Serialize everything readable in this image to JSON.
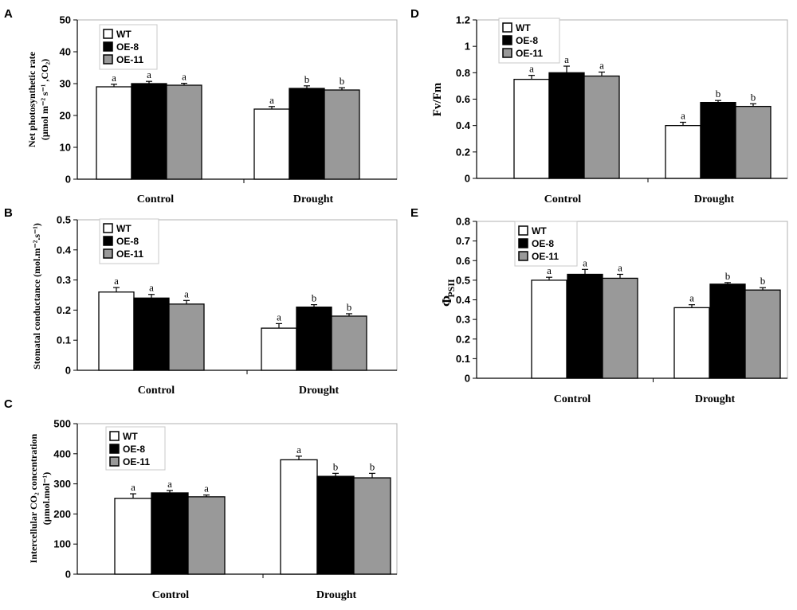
{
  "chart_data": [
    {
      "panel": "A",
      "type": "bar",
      "ylabel": "Net photosynthetic rate",
      "ylabel_unit": "(μmol m⁻² s⁻¹ ,CO₂)",
      "ylim": [
        0,
        50
      ],
      "yticks": [
        0,
        10,
        20,
        30,
        40,
        50
      ],
      "ytick_labels": [
        "0",
        "10",
        "20",
        "30",
        "40",
        "50"
      ],
      "categories": [
        "Control",
        "Drought"
      ],
      "series": [
        {
          "name": "WT",
          "color": "#ffffff",
          "values": [
            29,
            22
          ],
          "errors": [
            0.8,
            0.8
          ],
          "letters": [
            "a",
            "a"
          ]
        },
        {
          "name": "OE-8",
          "color": "#000000",
          "values": [
            30,
            28.5
          ],
          "errors": [
            0.7,
            0.8
          ],
          "letters": [
            "a",
            "b"
          ]
        },
        {
          "name": "OE-11",
          "color": "#999999",
          "values": [
            29.5,
            28
          ],
          "errors": [
            0.6,
            0.7
          ],
          "letters": [
            "a",
            "b"
          ]
        }
      ],
      "legend": [
        "WT",
        "OE-8",
        "OE-11"
      ]
    },
    {
      "panel": "B",
      "type": "bar",
      "ylabel": "Stomatal conductance (mol.m⁻².s⁻¹)",
      "ylim": [
        0,
        0.5
      ],
      "yticks": [
        0,
        0.1,
        0.2,
        0.3,
        0.4,
        0.5
      ],
      "ytick_labels": [
        "0",
        "0.1",
        "0.2",
        "0.3",
        "0.4",
        "0.5"
      ],
      "categories": [
        "Control",
        "Drought"
      ],
      "series": [
        {
          "name": "WT",
          "color": "#ffffff",
          "values": [
            0.26,
            0.14
          ],
          "errors": [
            0.015,
            0.015
          ],
          "letters": [
            "a",
            "a"
          ]
        },
        {
          "name": "OE-8",
          "color": "#000000",
          "values": [
            0.24,
            0.21
          ],
          "errors": [
            0.012,
            0.008
          ],
          "letters": [
            "a",
            "b"
          ]
        },
        {
          "name": "OE-11",
          "color": "#999999",
          "values": [
            0.22,
            0.18
          ],
          "errors": [
            0.012,
            0.008
          ],
          "letters": [
            "a",
            "b"
          ]
        }
      ],
      "legend": [
        "WT",
        "OE-8",
        "OE-11"
      ]
    },
    {
      "panel": "C",
      "type": "bar",
      "ylabel": "Intercellular CO₂ concentration",
      "ylabel_unit": "(μmol.mol⁻¹)",
      "ylim": [
        0,
        500
      ],
      "yticks": [
        0,
        100,
        200,
        300,
        400,
        500
      ],
      "ytick_labels": [
        "0",
        "100",
        "200",
        "300",
        "400",
        "500"
      ],
      "categories": [
        "Control",
        "Drought"
      ],
      "series": [
        {
          "name": "WT",
          "color": "#ffffff",
          "values": [
            252,
            380
          ],
          "errors": [
            15,
            12
          ],
          "letters": [
            "a",
            "a"
          ]
        },
        {
          "name": "OE-8",
          "color": "#000000",
          "values": [
            270,
            325
          ],
          "errors": [
            8,
            10
          ],
          "letters": [
            "a",
            "b"
          ]
        },
        {
          "name": "OE-11",
          "color": "#999999",
          "values": [
            257,
            320
          ],
          "errors": [
            6,
            15
          ],
          "letters": [
            "a",
            "b"
          ]
        }
      ],
      "legend": [
        "WT",
        "OE-8",
        "OE-11"
      ]
    },
    {
      "panel": "D",
      "type": "bar",
      "ylabel": "Fv/Fm",
      "ylim": [
        0,
        1.2
      ],
      "yticks": [
        0,
        0.2,
        0.4,
        0.6,
        0.8,
        1.0,
        1.2
      ],
      "ytick_labels": [
        "0",
        "0.2",
        "0.4",
        "0.6",
        "0.8",
        "1",
        "1.2"
      ],
      "categories": [
        "Control",
        "Drought"
      ],
      "series": [
        {
          "name": "WT",
          "color": "#ffffff",
          "values": [
            0.75,
            0.4
          ],
          "errors": [
            0.03,
            0.025
          ],
          "letters": [
            "a",
            "a"
          ]
        },
        {
          "name": "OE-8",
          "color": "#000000",
          "values": [
            0.8,
            0.575
          ],
          "errors": [
            0.05,
            0.015
          ],
          "letters": [
            "a",
            "b"
          ]
        },
        {
          "name": "OE-11",
          "color": "#999999",
          "values": [
            0.775,
            0.545
          ],
          "errors": [
            0.03,
            0.02
          ],
          "letters": [
            "a",
            "b"
          ]
        }
      ],
      "legend": [
        "WT",
        "OE-8",
        "OE-11"
      ]
    },
    {
      "panel": "E",
      "type": "bar",
      "ylabel": "Φ",
      "ylabel_sub": "PSII",
      "ylim": [
        0,
        0.8
      ],
      "yticks": [
        0,
        0.1,
        0.2,
        0.3,
        0.4,
        0.5,
        0.6,
        0.7,
        0.8
      ],
      "ytick_labels": [
        "0",
        "0.1",
        "0.2",
        "0.3",
        "0.4",
        "0.5",
        "0.6",
        "0.7",
        "0.8"
      ],
      "categories": [
        "Control",
        "Drought"
      ],
      "series": [
        {
          "name": "WT",
          "color": "#ffffff",
          "values": [
            0.5,
            0.36
          ],
          "errors": [
            0.015,
            0.015
          ],
          "letters": [
            "a",
            "a"
          ]
        },
        {
          "name": "OE-8",
          "color": "#000000",
          "values": [
            0.53,
            0.48
          ],
          "errors": [
            0.025,
            0.008
          ],
          "letters": [
            "a",
            "b"
          ]
        },
        {
          "name": "OE-11",
          "color": "#999999",
          "values": [
            0.51,
            0.45
          ],
          "errors": [
            0.02,
            0.012
          ],
          "letters": [
            "a",
            "b"
          ]
        }
      ],
      "legend": [
        "WT",
        "OE-8",
        "OE-11"
      ]
    }
  ]
}
